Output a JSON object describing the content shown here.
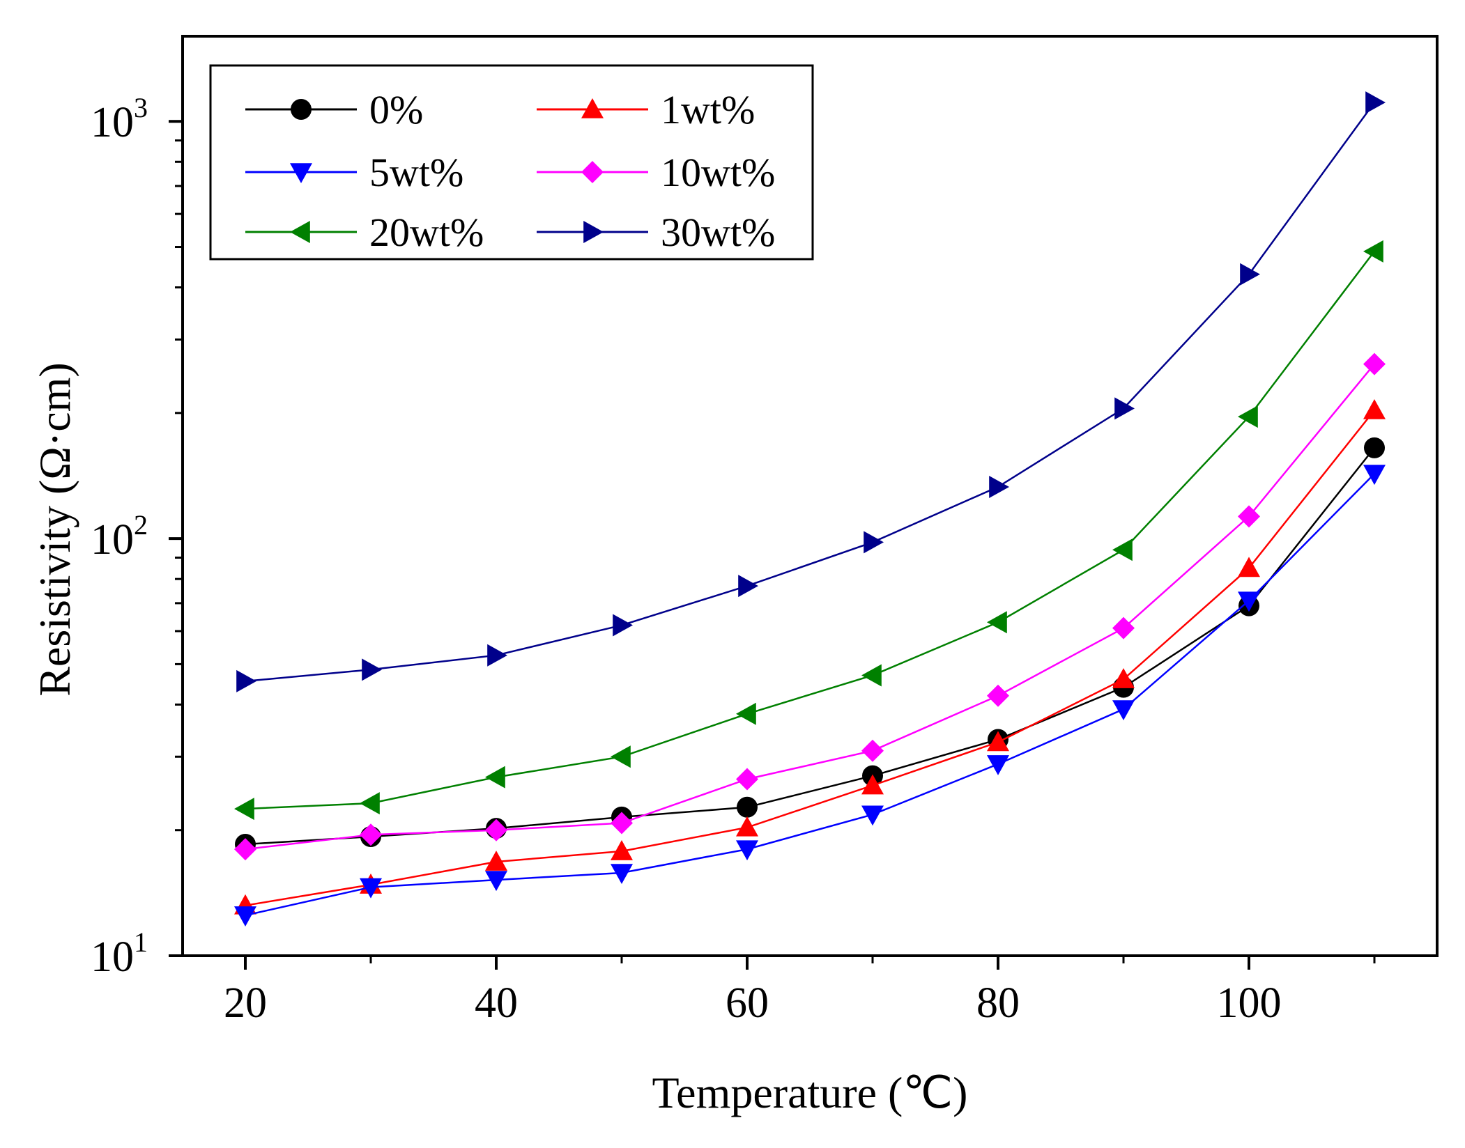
{
  "chart_data": {
    "type": "line",
    "title": "",
    "xlabel": "Temperature (℃)",
    "ylabel": "Resistivity (Ω·cm)",
    "xlim": [
      15,
      115
    ],
    "ylim": [
      10,
      1600
    ],
    "y_scale": "log",
    "grid": false,
    "legend_position": "top-left",
    "x_ticks": [
      20,
      40,
      60,
      80,
      100
    ],
    "x_tick_labels": [
      "20",
      "40",
      "60",
      "80",
      "100"
    ],
    "y_ticks": [
      {
        "base": "10",
        "exp": "1",
        "value": 10
      },
      {
        "base": "10",
        "exp": "2",
        "value": 100
      },
      {
        "base": "10",
        "exp": "3",
        "value": 1000
      }
    ],
    "x": [
      20,
      30,
      40,
      50,
      60,
      70,
      80,
      90,
      100,
      110
    ],
    "series": [
      {
        "name": "0%",
        "color": "#000000",
        "marker": "circle",
        "values": [
          18.5,
          19.3,
          20.2,
          21.5,
          22.7,
          27,
          33,
          44,
          69,
          165
        ]
      },
      {
        "name": "1wt%",
        "color": "#ff0000",
        "marker": "triangle-up",
        "values": [
          13.2,
          14.8,
          16.8,
          17.8,
          20.3,
          25.6,
          32.5,
          46,
          85,
          203
        ]
      },
      {
        "name": "5wt%",
        "color": "#0000ff",
        "marker": "triangle-down",
        "values": [
          12.5,
          14.6,
          15.2,
          15.8,
          18,
          21.8,
          28.8,
          39,
          71,
          143
        ]
      },
      {
        "name": "10wt%",
        "color": "#ff00ff",
        "marker": "diamond",
        "values": [
          18,
          19.5,
          20,
          20.8,
          26.5,
          31,
          42,
          61,
          113,
          262
        ]
      },
      {
        "name": "20wt%",
        "color": "#008000",
        "marker": "triangle-left",
        "values": [
          22.5,
          23.2,
          26.8,
          30,
          38,
          47,
          63,
          94,
          196,
          488
        ]
      },
      {
        "name": "30wt%",
        "color": "#00008b",
        "marker": "triangle-right",
        "values": [
          45.5,
          48.5,
          52.5,
          62,
          77,
          98,
          133,
          205,
          430,
          1110
        ]
      }
    ]
  }
}
